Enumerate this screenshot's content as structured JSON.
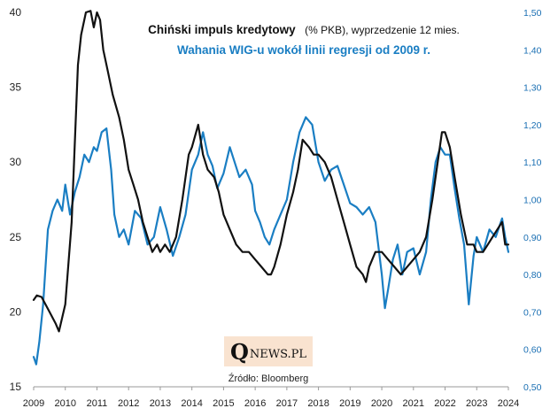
{
  "chart_data": {
    "type": "line",
    "title_line1": {
      "bold": "Chiński impuls kredytowy",
      "rest": "(% PKB), wyprzedzenie 12 mies."
    },
    "title_line2": "Wahania  WIG-u wokół linii regresji od 2009 r.",
    "source": "Źródło: Bloomberg",
    "left_axis": {
      "ylim": [
        15,
        40
      ],
      "ticks": [
        "15",
        "20",
        "25",
        "30",
        "35",
        "40"
      ]
    },
    "right_axis": {
      "ylim": [
        0.5,
        1.5
      ],
      "ticks": [
        "0,50",
        "0,60",
        "0,70",
        "0,80",
        "0,90",
        "1,00",
        "1,10",
        "1,20",
        "1,30",
        "1,40",
        "1,50"
      ]
    },
    "x_axis": {
      "xlim": [
        2009,
        2024
      ],
      "ticks": [
        "2009",
        "2010",
        "2011",
        "2012",
        "2013",
        "2014",
        "2015",
        "2016",
        "2017",
        "2018",
        "2019",
        "2020",
        "2021",
        "2022",
        "2023",
        "2024"
      ]
    },
    "series": [
      {
        "name": "Chiński impuls kredytowy",
        "axis": "left",
        "color": "#111111",
        "x": [
          2009.0,
          2009.1,
          2009.25,
          2009.5,
          2009.7,
          2009.8,
          2010.0,
          2010.2,
          2010.4,
          2010.5,
          2010.65,
          2010.8,
          2010.9,
          2011.0,
          2011.1,
          2011.2,
          2011.35,
          2011.5,
          2011.7,
          2011.85,
          2012.0,
          2012.15,
          2012.3,
          2012.45,
          2012.6,
          2012.75,
          2012.9,
          2013.0,
          2013.15,
          2013.3,
          2013.5,
          2013.7,
          2013.9,
          2014.0,
          2014.2,
          2014.35,
          2014.5,
          2014.7,
          2014.85,
          2015.0,
          2015.2,
          2015.4,
          2015.6,
          2015.8,
          2016.0,
          2016.2,
          2016.4,
          2016.5,
          2016.6,
          2016.8,
          2017.0,
          2017.2,
          2017.35,
          2017.5,
          2017.7,
          2017.85,
          2018.0,
          2018.2,
          2018.4,
          2018.6,
          2018.8,
          2019.0,
          2019.2,
          2019.4,
          2019.5,
          2019.6,
          2019.8,
          2020.0,
          2020.2,
          2020.4,
          2020.6,
          2020.8,
          2021.0,
          2021.2,
          2021.4,
          2021.6,
          2021.8,
          2021.9,
          2022.0,
          2022.15,
          2022.3,
          2022.5,
          2022.7,
          2022.9,
          2023.0,
          2023.1,
          2023.2,
          2023.35,
          2023.5,
          2023.65,
          2023.8,
          2023.9,
          2024.0
        ],
        "values": [
          20.8,
          21.1,
          21.0,
          20.0,
          19.2,
          18.7,
          20.5,
          26.0,
          36.5,
          38.5,
          40.0,
          40.1,
          39.0,
          40.0,
          39.5,
          37.5,
          36.0,
          34.5,
          33.0,
          31.5,
          29.5,
          28.5,
          27.5,
          26.0,
          25.0,
          24.0,
          24.5,
          24.0,
          24.5,
          24.0,
          25.0,
          27.5,
          30.5,
          31.0,
          32.5,
          30.5,
          29.5,
          29.0,
          28.0,
          26.5,
          25.5,
          24.5,
          24.0,
          24.0,
          23.5,
          23.0,
          22.5,
          22.5,
          23.0,
          24.5,
          26.5,
          28.0,
          29.5,
          31.5,
          31.0,
          30.5,
          30.5,
          30.0,
          29.0,
          27.5,
          26.0,
          24.5,
          23.0,
          22.5,
          22.0,
          23.0,
          24.0,
          24.0,
          23.5,
          23.0,
          22.5,
          23.0,
          23.5,
          24.0,
          25.0,
          27.5,
          30.5,
          32.0,
          32.0,
          31.0,
          29.0,
          26.5,
          24.5,
          24.5,
          24.0,
          24.0,
          24.0,
          24.5,
          25.0,
          25.5,
          26.0,
          24.5,
          24.5
        ]
      },
      {
        "name": "Wahania WIG-u wokół linii regresji",
        "axis": "right",
        "color": "#1a7ec3",
        "x": [
          2009.0,
          2009.08,
          2009.18,
          2009.3,
          2009.45,
          2009.6,
          2009.75,
          2009.9,
          2010.0,
          2010.15,
          2010.3,
          2010.45,
          2010.6,
          2010.75,
          2010.9,
          2011.0,
          2011.15,
          2011.3,
          2011.45,
          2011.55,
          2011.7,
          2011.85,
          2012.0,
          2012.2,
          2012.4,
          2012.6,
          2012.8,
          2013.0,
          2013.2,
          2013.4,
          2013.6,
          2013.8,
          2014.0,
          2014.2,
          2014.35,
          2014.5,
          2014.65,
          2014.8,
          2015.0,
          2015.2,
          2015.35,
          2015.5,
          2015.7,
          2015.9,
          2016.0,
          2016.15,
          2016.3,
          2016.45,
          2016.6,
          2016.8,
          2017.0,
          2017.2,
          2017.4,
          2017.6,
          2017.8,
          2018.0,
          2018.2,
          2018.4,
          2018.6,
          2018.8,
          2019.0,
          2019.2,
          2019.4,
          2019.6,
          2019.8,
          2020.0,
          2020.1,
          2020.2,
          2020.35,
          2020.5,
          2020.65,
          2020.8,
          2021.0,
          2021.2,
          2021.4,
          2021.55,
          2021.7,
          2021.85,
          2022.0,
          2022.15,
          2022.3,
          2022.45,
          2022.6,
          2022.75,
          2022.9,
          2023.0,
          2023.2,
          2023.4,
          2023.6,
          2023.8,
          2023.9,
          2024.0
        ],
        "values": [
          0.58,
          0.56,
          0.62,
          0.72,
          0.92,
          0.97,
          1.0,
          0.97,
          1.04,
          0.96,
          1.02,
          1.06,
          1.12,
          1.1,
          1.14,
          1.13,
          1.18,
          1.19,
          1.08,
          0.96,
          0.9,
          0.92,
          0.88,
          0.97,
          0.95,
          0.88,
          0.9,
          0.98,
          0.92,
          0.85,
          0.9,
          0.96,
          1.08,
          1.12,
          1.18,
          1.12,
          1.09,
          1.03,
          1.07,
          1.14,
          1.1,
          1.06,
          1.08,
          1.04,
          0.97,
          0.94,
          0.9,
          0.88,
          0.92,
          0.96,
          1.0,
          1.1,
          1.18,
          1.22,
          1.2,
          1.1,
          1.05,
          1.08,
          1.09,
          1.04,
          0.99,
          0.98,
          0.96,
          0.98,
          0.94,
          0.8,
          0.71,
          0.76,
          0.84,
          0.88,
          0.8,
          0.86,
          0.87,
          0.8,
          0.86,
          1.0,
          1.1,
          1.14,
          1.12,
          1.12,
          1.03,
          0.95,
          0.88,
          0.72,
          0.85,
          0.9,
          0.86,
          0.92,
          0.9,
          0.95,
          0.9,
          0.86
        ]
      }
    ],
    "logo": {
      "big_letter": "Q",
      "rest": "NEWS.PL"
    }
  }
}
